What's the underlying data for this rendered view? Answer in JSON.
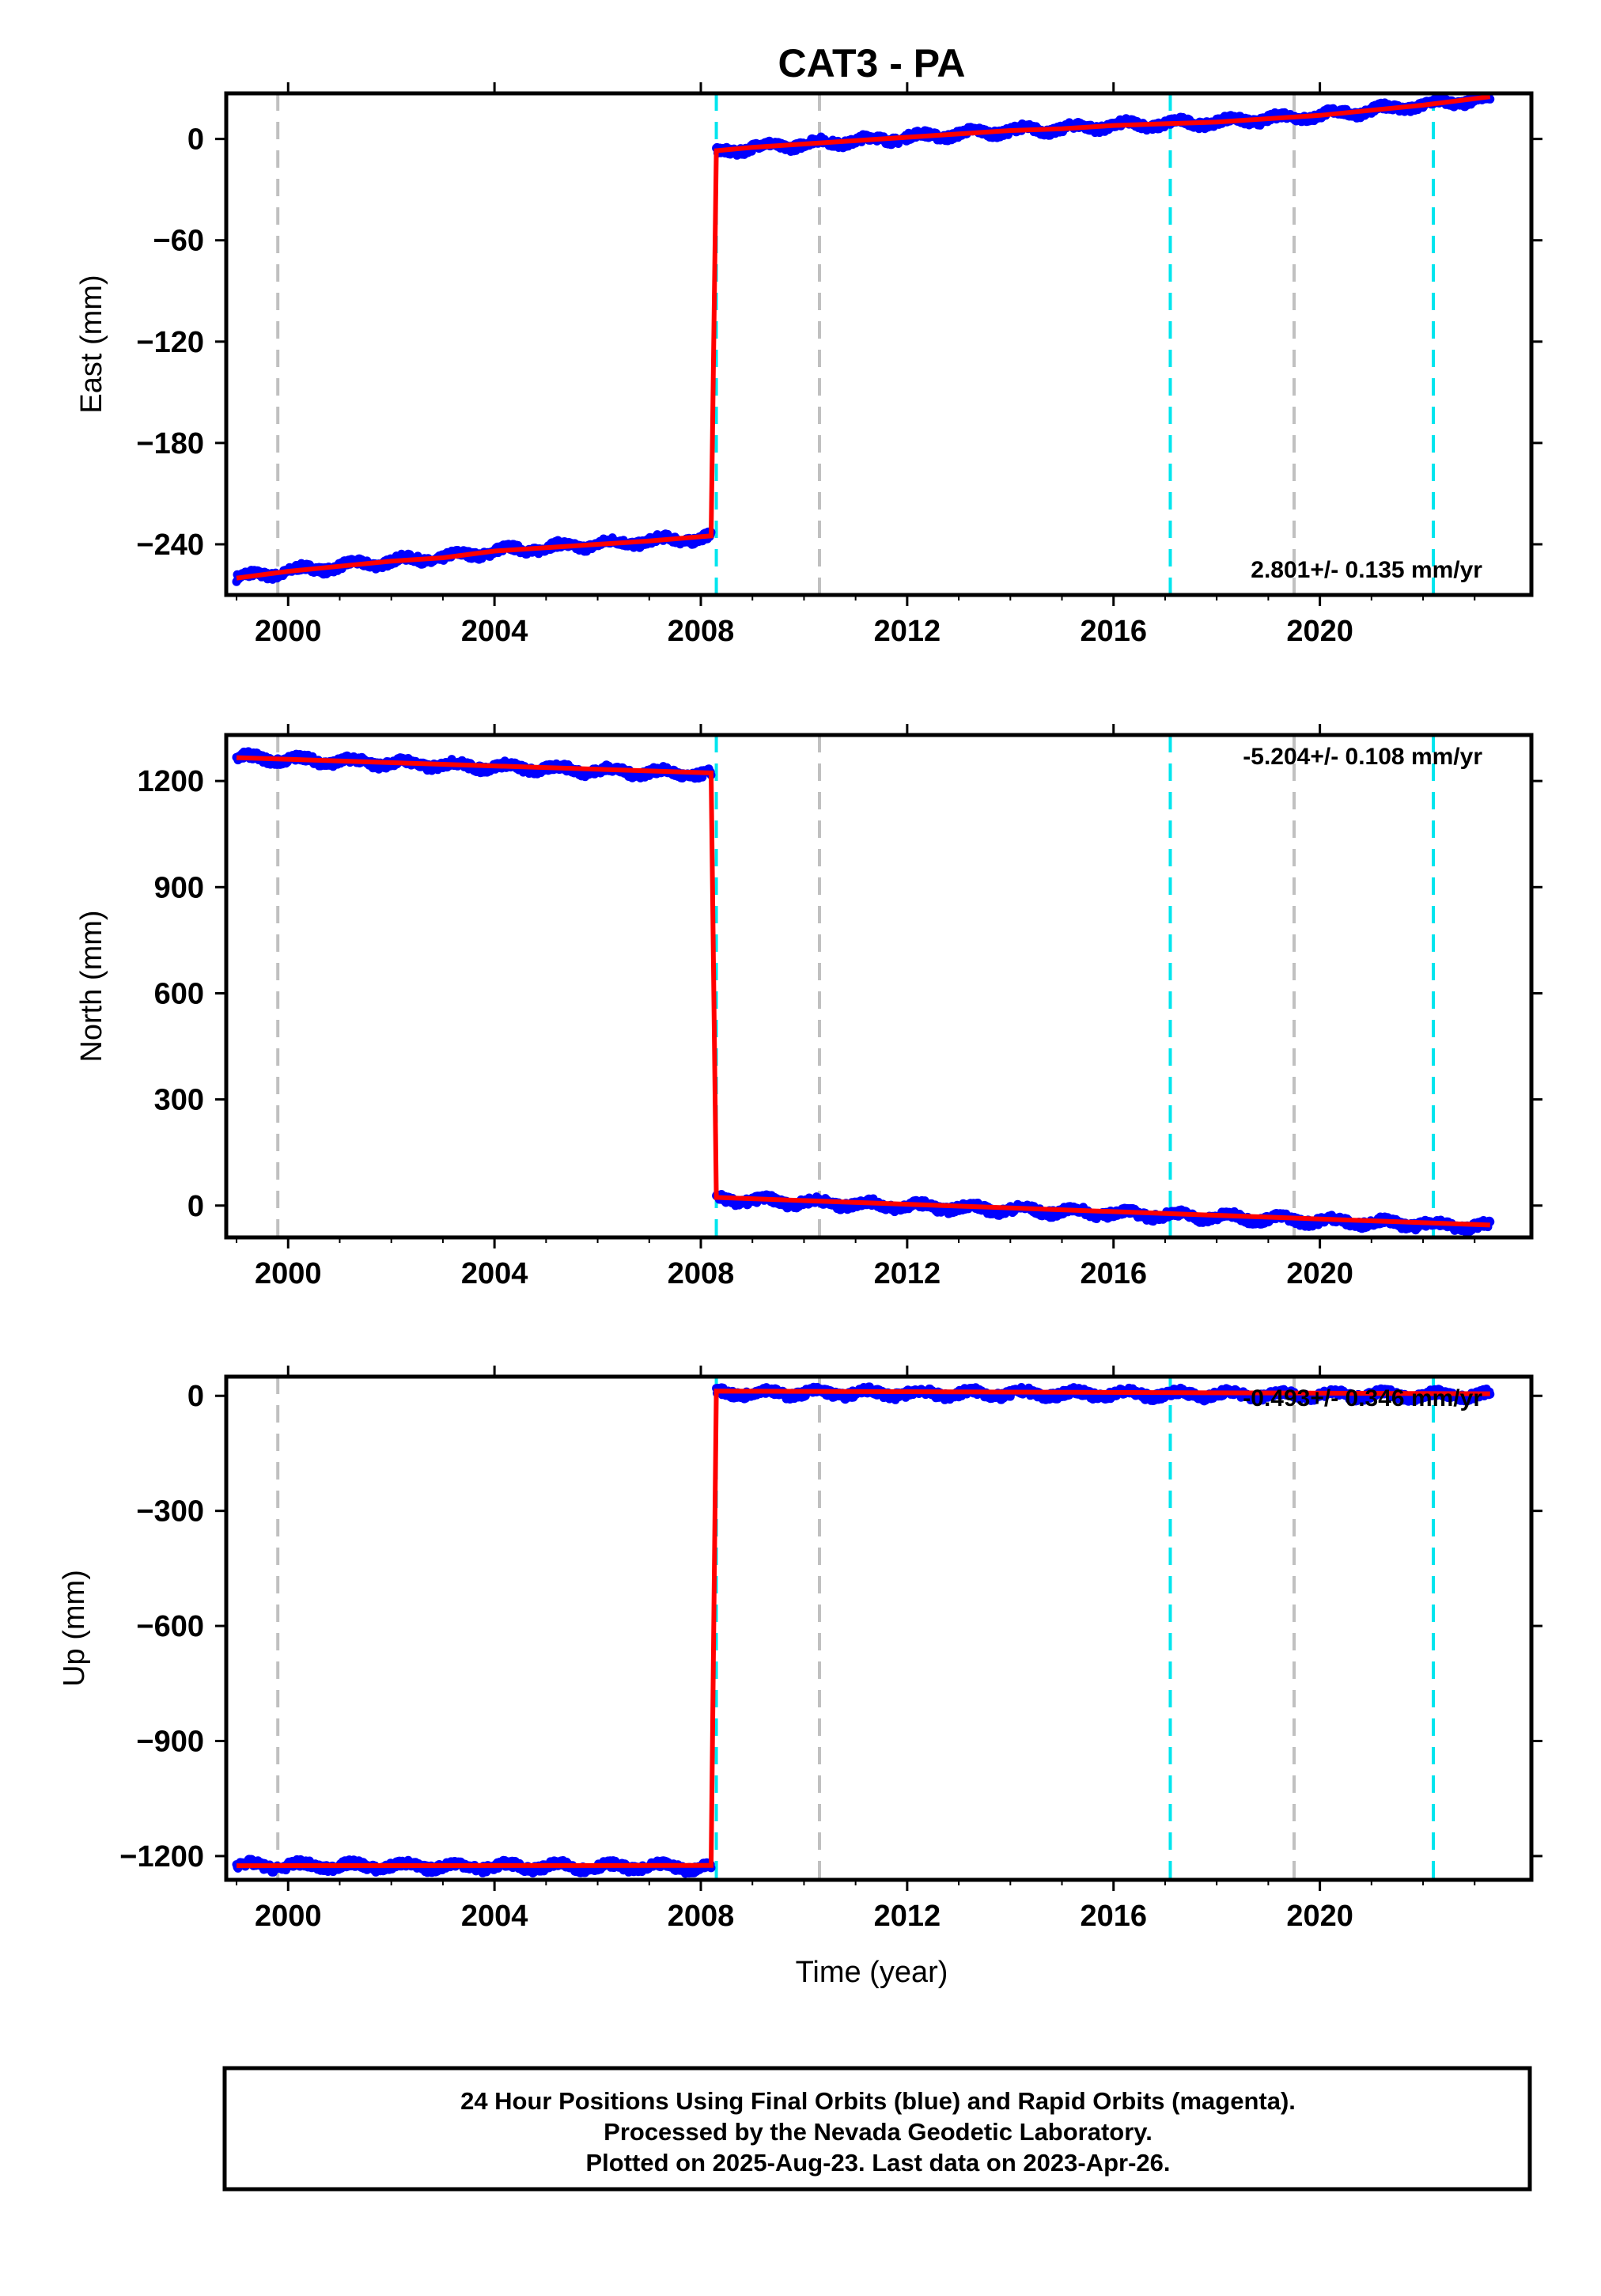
{
  "figure": {
    "title": "CAT3 - PA",
    "xlabel": "Time (year)",
    "footer": [
      "24 Hour Positions Using Final Orbits (blue) and Rapid Orbits (magenta).",
      "Processed by the Nevada Geodetic Laboratory.",
      "Plotted on 2025-Aug-23. Last data on 2023-Apr-26."
    ]
  },
  "colors": {
    "data_points": "#0000ff",
    "model_line": "#ff0000",
    "equipment_change": "#00e5ee",
    "earthquake": "#c0c0c0"
  },
  "chart_data": [
    {
      "type": "scatter",
      "panel": "east",
      "ylabel": "East (mm)",
      "xlim": [
        1998.8,
        2024.1
      ],
      "ylim": [
        -270,
        27
      ],
      "xticks": [
        2000,
        2004,
        2008,
        2012,
        2016,
        2020
      ],
      "xtick_labels": [
        "2000",
        "2004",
        "2008",
        "2012",
        "2016",
        "2020"
      ],
      "yticks": [
        0,
        -60,
        -120,
        -180,
        -240
      ],
      "ytick_labels": [
        "0",
        "−60",
        "−120",
        "−180",
        "−240"
      ],
      "rate_label": "2.801+/- 0.135 mm/yr",
      "rate_position": "bottom-right",
      "series": [
        {
          "x": [
            1999.0,
            2000.0,
            2001.0,
            2002.0,
            2003.0,
            2004.0,
            2005.0,
            2006.0,
            2007.0,
            2008.2
          ],
          "y": [
            -260,
            -256,
            -253,
            -250,
            -248,
            -244,
            -242,
            -240,
            -238,
            -236
          ]
        },
        {
          "x": [
            2008.3,
            2009.0,
            2010.0,
            2011.0,
            2012.0,
            2013.0,
            2014.0,
            2015.0,
            2016.0,
            2017.0,
            2018.0,
            2019.0,
            2020.0,
            2021.0,
            2022.0,
            2023.3
          ],
          "y": [
            -8,
            -5,
            -3,
            -1,
            1,
            3,
            5,
            6,
            8,
            9,
            10,
            12,
            14,
            17,
            20,
            24
          ]
        }
      ],
      "cyan_lines": [
        2008.3,
        2017.1,
        2022.2
      ],
      "gray_lines": [
        1999.8,
        2010.3,
        2019.5
      ]
    },
    {
      "type": "scatter",
      "panel": "north",
      "ylabel": "North (mm)",
      "xlim": [
        1998.8,
        2024.1
      ],
      "ylim": [
        -90,
        1330
      ],
      "xticks": [
        2000,
        2004,
        2008,
        2012,
        2016,
        2020
      ],
      "xtick_labels": [
        "2000",
        "2004",
        "2008",
        "2012",
        "2016",
        "2020"
      ],
      "yticks": [
        1200,
        900,
        600,
        300,
        0
      ],
      "ytick_labels": [
        "1200",
        "900",
        "600",
        "300",
        "0"
      ],
      "rate_label": "-5.204+/- 0.108 mm/yr",
      "rate_position": "top-right",
      "series": [
        {
          "x": [
            1999.0,
            2008.2
          ],
          "y": [
            1266,
            1218
          ]
        },
        {
          "x": [
            2008.3,
            2023.3
          ],
          "y": [
            18,
            -60
          ]
        }
      ],
      "cyan_lines": [
        2008.3,
        2017.1,
        2022.2
      ],
      "gray_lines": [
        1999.8,
        2010.3,
        2019.5
      ]
    },
    {
      "type": "scatter",
      "panel": "up",
      "ylabel": "Up (mm)",
      "xlim": [
        1998.8,
        2024.1
      ],
      "ylim": [
        -1262,
        50
      ],
      "xticks": [
        2000,
        2004,
        2008,
        2012,
        2016,
        2020
      ],
      "xtick_labels": [
        "2000",
        "2004",
        "2008",
        "2012",
        "2016",
        "2020"
      ],
      "yticks": [
        0,
        -300,
        -600,
        -900,
        -1200
      ],
      "ytick_labels": [
        "0",
        "−300",
        "−600",
        "−900",
        "−1200"
      ],
      "rate_label": "-0.493+/- 0.346 mm/yr",
      "rate_position": "top-right",
      "series": [
        {
          "x": [
            1999.0,
            2008.2
          ],
          "y": [
            -1225,
            -1229
          ]
        },
        {
          "x": [
            2008.3,
            2023.3
          ],
          "y": [
            8,
            1
          ]
        }
      ],
      "cyan_lines": [
        2008.3,
        2017.1,
        2022.2
      ],
      "gray_lines": [
        1999.8,
        2010.3,
        2019.5
      ]
    }
  ]
}
